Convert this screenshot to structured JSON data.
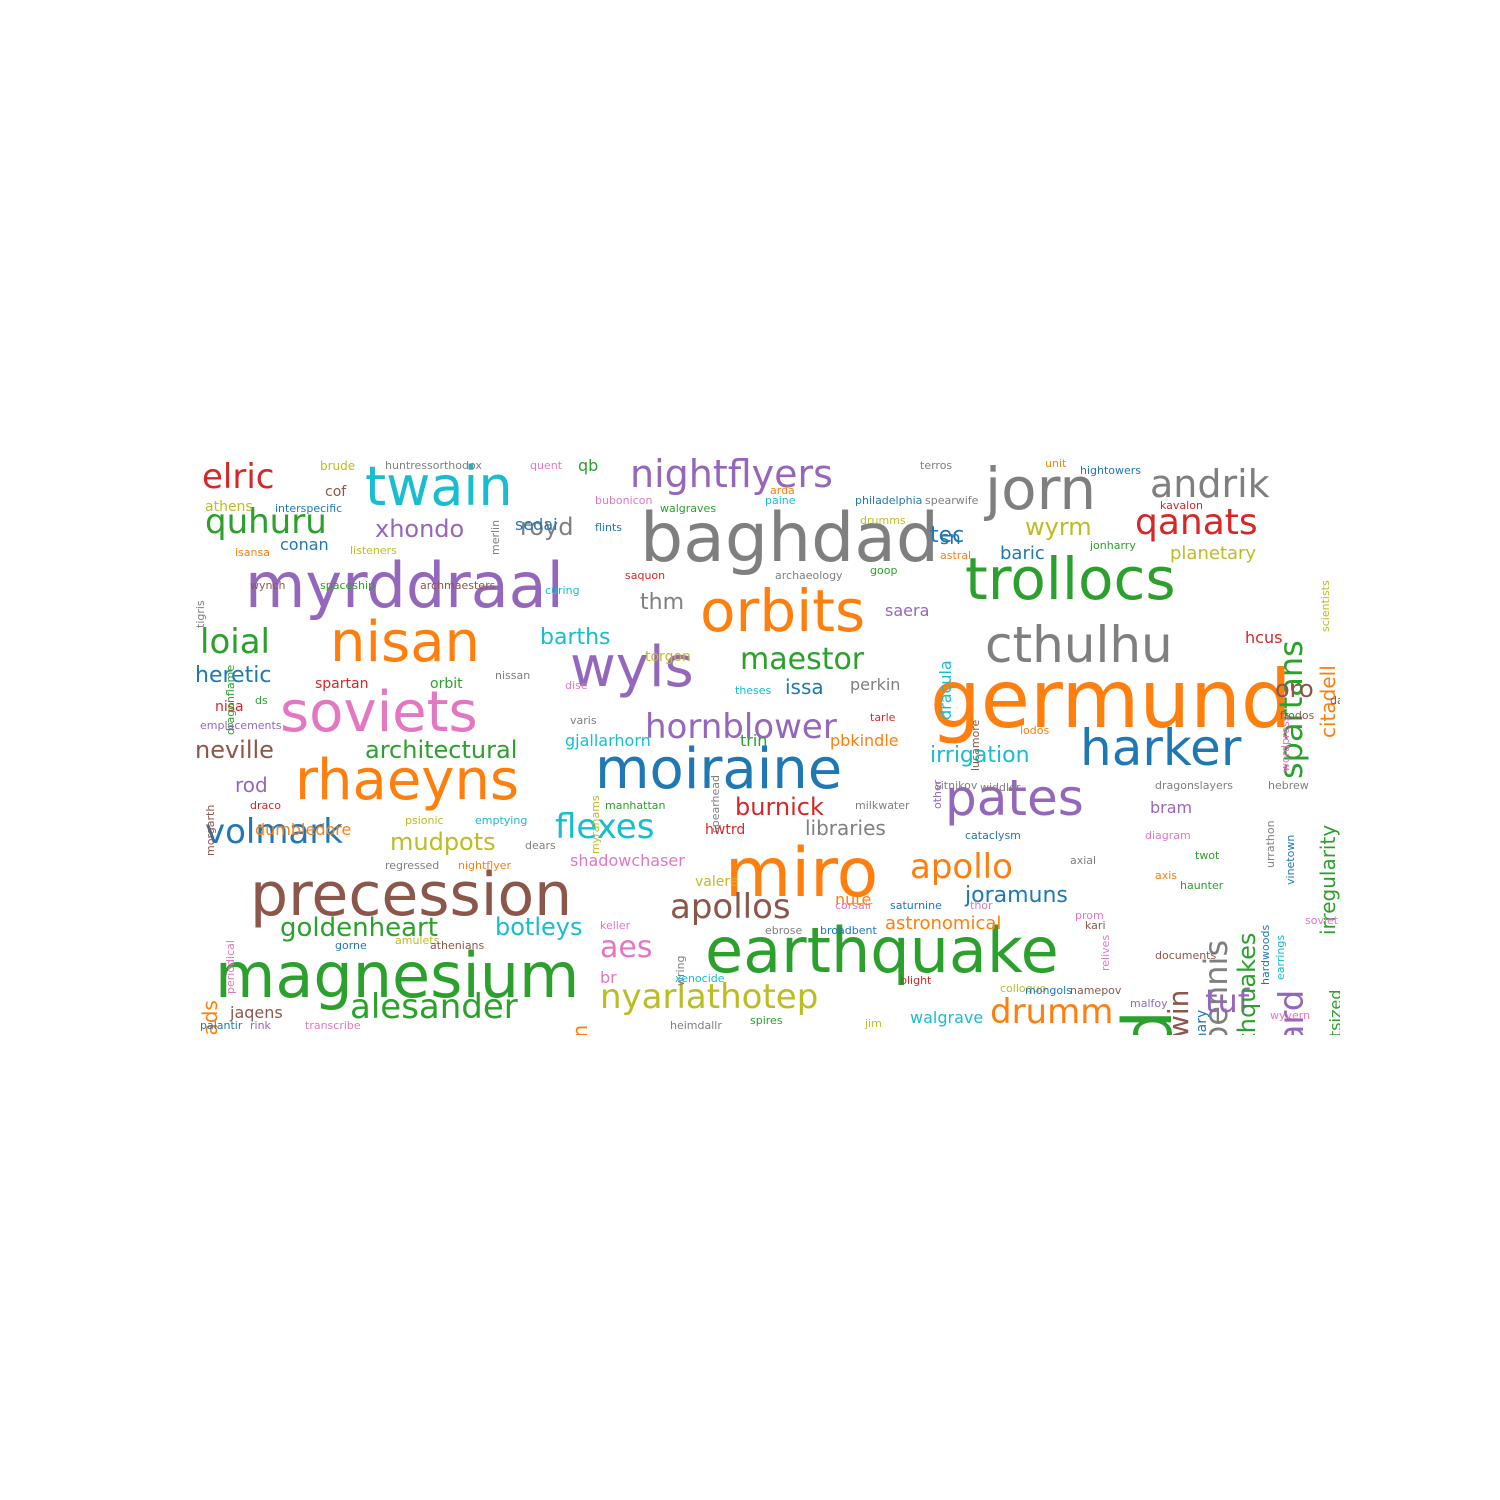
{
  "palette": {
    "blue": "#1f77b4",
    "orange": "#ff7f0e",
    "green": "#2ca02c",
    "red": "#d62728",
    "purple": "#9467bd",
    "brown": "#8c564b",
    "pink": "#e377c2",
    "gray": "#7f7f7f",
    "olive": "#bcbd22",
    "cyan": "#17becf"
  },
  "words": [
    {
      "t": "germund",
      "c": "orange"
    },
    {
      "t": "rand",
      "c": "green"
    },
    {
      "t": "baghdad",
      "c": "gray"
    },
    {
      "t": "miro",
      "c": "orange"
    },
    {
      "t": "magnesium",
      "c": "green"
    },
    {
      "t": "precession",
      "c": "brown"
    },
    {
      "t": "earthquake",
      "c": "green"
    },
    {
      "t": "myrddraal",
      "c": "purple"
    },
    {
      "t": "trollocs",
      "c": "green"
    },
    {
      "t": "orbits",
      "c": "orange"
    },
    {
      "t": "jorn",
      "c": "gray"
    },
    {
      "t": "moiraine",
      "c": "blue"
    },
    {
      "t": "soviets",
      "c": "pink"
    },
    {
      "t": "nisan",
      "c": "orange"
    },
    {
      "t": "rhaeyns",
      "c": "orange"
    },
    {
      "t": "wyls",
      "c": "purple"
    },
    {
      "t": "pates",
      "c": "purple"
    },
    {
      "t": "harker",
      "c": "blue"
    },
    {
      "t": "cthulhu",
      "c": "gray"
    },
    {
      "t": "twain",
      "c": "cyan"
    },
    {
      "t": "nightflyers",
      "c": "purple"
    },
    {
      "t": "andrik",
      "c": "gray"
    },
    {
      "t": "spartans",
      "c": "green"
    },
    {
      "t": "qanats",
      "c": "red"
    },
    {
      "t": "bennis",
      "c": "gray"
    },
    {
      "t": "midgaard",
      "c": "purple"
    },
    {
      "t": "elric",
      "c": "red"
    },
    {
      "t": "quhuru",
      "c": "green"
    },
    {
      "t": "loial",
      "c": "green"
    },
    {
      "t": "volmark",
      "c": "blue"
    },
    {
      "t": "alesander",
      "c": "green"
    },
    {
      "t": "nyarlathotep",
      "c": "olive"
    },
    {
      "t": "apollos",
      "c": "brown"
    },
    {
      "t": "apollo",
      "c": "orange"
    },
    {
      "t": "flexes",
      "c": "cyan"
    },
    {
      "t": "hornblower",
      "c": "purple"
    },
    {
      "t": "maestor",
      "c": "green"
    },
    {
      "t": "goldenheart",
      "c": "green"
    },
    {
      "t": "drumm",
      "c": "orange"
    },
    {
      "t": "tuf",
      "c": "purple"
    },
    {
      "t": "earthquakes",
      "c": "green"
    },
    {
      "t": "kerwin",
      "c": "brown"
    },
    {
      "t": "aes",
      "c": "pink"
    },
    {
      "t": "xhondo",
      "c": "purple"
    },
    {
      "t": "royd",
      "c": "gray"
    },
    {
      "t": "wyrm",
      "c": "olive"
    },
    {
      "t": "tec",
      "c": "blue"
    },
    {
      "t": "irregularity",
      "c": "green"
    },
    {
      "t": "citadell",
      "c": "orange"
    },
    {
      "t": "joramuns",
      "c": "blue"
    },
    {
      "t": "arrowheads",
      "c": "orange"
    },
    {
      "t": "architectural",
      "c": "green"
    },
    {
      "t": "mudpots",
      "c": "olive"
    },
    {
      "t": "irrigation",
      "c": "cyan"
    },
    {
      "t": "burnick",
      "c": "red"
    },
    {
      "t": "botleys",
      "c": "cyan"
    },
    {
      "t": "barths",
      "c": "cyan"
    },
    {
      "t": "heretic",
      "c": "blue"
    },
    {
      "t": "neville",
      "c": "brown"
    },
    {
      "t": "libraries",
      "c": "gray"
    },
    {
      "t": "oro",
      "c": "brown"
    },
    {
      "t": "ln",
      "c": "orange"
    },
    {
      "t": "issa",
      "c": "blue"
    },
    {
      "t": "thm",
      "c": "gray"
    },
    {
      "t": "sn",
      "c": "blue"
    },
    {
      "t": "planetary",
      "c": "olive"
    },
    {
      "t": "baric",
      "c": "blue"
    },
    {
      "t": "rod",
      "c": "purple"
    },
    {
      "t": "astronomical",
      "c": "orange"
    },
    {
      "t": "dumbledore",
      "c": "orange"
    },
    {
      "t": "outsized",
      "c": "green"
    },
    {
      "t": "dracula",
      "c": "cyan"
    },
    {
      "t": "perkin",
      "c": "gray"
    },
    {
      "t": "saera",
      "c": "purple"
    },
    {
      "t": "hcus",
      "c": "red"
    },
    {
      "t": "pbkindle",
      "c": "orange"
    },
    {
      "t": "trin",
      "c": "green"
    },
    {
      "t": "gjallarhorn",
      "c": "cyan"
    },
    {
      "t": "conan",
      "c": "blue"
    },
    {
      "t": "sedai",
      "c": "blue"
    },
    {
      "t": "qb",
      "c": "green"
    },
    {
      "t": "bram",
      "c": "purple"
    },
    {
      "t": "walgrave",
      "c": "cyan"
    },
    {
      "t": "binary",
      "c": "blue"
    },
    {
      "t": "jaqens",
      "c": "brown"
    },
    {
      "t": "br",
      "c": "pink"
    },
    {
      "t": "nute",
      "c": "orange"
    },
    {
      "t": "shadowchaser",
      "c": "pink"
    },
    {
      "t": "hwtrd",
      "c": "red"
    },
    {
      "t": "torgon",
      "c": "olive"
    },
    {
      "t": "valere",
      "c": "olive"
    },
    {
      "t": "nisa",
      "c": "red"
    },
    {
      "t": "spartan",
      "c": "red"
    },
    {
      "t": "orbit",
      "c": "green"
    },
    {
      "t": "athens",
      "c": "olive"
    },
    {
      "t": "cof",
      "c": "brown"
    },
    {
      "t": "brude",
      "c": "olive"
    },
    {
      "t": "huntressorthodox",
      "c": "gray"
    },
    {
      "t": "quent",
      "c": "pink"
    },
    {
      "t": "interspecific",
      "c": "blue"
    },
    {
      "t": "listeners",
      "c": "olive"
    },
    {
      "t": "isansa",
      "c": "orange"
    },
    {
      "t": "merlin",
      "c": "gray"
    },
    {
      "t": "bubonicon",
      "c": "pink"
    },
    {
      "t": "flints",
      "c": "blue"
    },
    {
      "t": "walgraves",
      "c": "green"
    },
    {
      "t": "arda",
      "c": "orange"
    },
    {
      "t": "paine",
      "c": "cyan"
    },
    {
      "t": "philadelphia",
      "c": "blue"
    },
    {
      "t": "drumms",
      "c": "olive"
    },
    {
      "t": "spearwife",
      "c": "gray"
    },
    {
      "t": "terros",
      "c": "gray"
    },
    {
      "t": "unit",
      "c": "orange"
    },
    {
      "t": "hightowers",
      "c": "blue"
    },
    {
      "t": "kavalon",
      "c": "red"
    },
    {
      "t": "jonharry",
      "c": "green"
    },
    {
      "t": "scientists",
      "c": "olive"
    },
    {
      "t": "astral",
      "c": "orange"
    },
    {
      "t": "goop",
      "c": "green"
    },
    {
      "t": "archaeology",
      "c": "gray"
    },
    {
      "t": "saquon",
      "c": "red"
    },
    {
      "t": "wynch",
      "c": "brown"
    },
    {
      "t": "spaceship",
      "c": "green"
    },
    {
      "t": "archmaesters",
      "c": "brown"
    },
    {
      "t": "curing",
      "c": "cyan"
    },
    {
      "t": "tigris",
      "c": "gray"
    },
    {
      "t": "dragonflame",
      "c": "green"
    },
    {
      "t": "nissan",
      "c": "gray"
    },
    {
      "t": "dise",
      "c": "pink"
    },
    {
      "t": "theses",
      "c": "cyan"
    },
    {
      "t": "lucamore",
      "c": "brown"
    },
    {
      "t": "other",
      "c": "purple"
    },
    {
      "t": "lodos",
      "c": "orange"
    },
    {
      "t": "daerons",
      "c": "brown"
    },
    {
      "t": "wordpress",
      "c": "pink"
    },
    {
      "t": "frodos",
      "c": "brown"
    },
    {
      "t": "ds",
      "c": "green"
    },
    {
      "t": "emplacements",
      "c": "purple"
    },
    {
      "t": "varis",
      "c": "gray"
    },
    {
      "t": "tarle",
      "c": "red"
    },
    {
      "t": "spearhead",
      "c": "gray"
    },
    {
      "t": "myrahams",
      "c": "olive"
    },
    {
      "t": "sitnikov",
      "c": "gray"
    },
    {
      "t": "widdler",
      "c": "gray"
    },
    {
      "t": "dragonslayers",
      "c": "gray"
    },
    {
      "t": "hebrew",
      "c": "gray"
    },
    {
      "t": "morgarth",
      "c": "brown"
    },
    {
      "t": "draco",
      "c": "red"
    },
    {
      "t": "psionic",
      "c": "olive"
    },
    {
      "t": "emptying",
      "c": "cyan"
    },
    {
      "t": "manhattan",
      "c": "green"
    },
    {
      "t": "milkwater",
      "c": "gray"
    },
    {
      "t": "dears",
      "c": "gray"
    },
    {
      "t": "cataclysm",
      "c": "blue"
    },
    {
      "t": "diagram",
      "c": "pink"
    },
    {
      "t": "urrathon",
      "c": "gray"
    },
    {
      "t": "periodical",
      "c": "pink"
    },
    {
      "t": "regressed",
      "c": "gray"
    },
    {
      "t": "nightflyer",
      "c": "orange"
    },
    {
      "t": "axial",
      "c": "gray"
    },
    {
      "t": "twot",
      "c": "green"
    },
    {
      "t": "axis",
      "c": "orange"
    },
    {
      "t": "haunter",
      "c": "green"
    },
    {
      "t": "vinetown",
      "c": "blue"
    },
    {
      "t": "earrings",
      "c": "cyan"
    },
    {
      "t": "hardwoods",
      "c": "blue"
    },
    {
      "t": "corsair",
      "c": "pink"
    },
    {
      "t": "saturnine",
      "c": "blue"
    },
    {
      "t": "thor",
      "c": "pink"
    },
    {
      "t": "prom",
      "c": "pink"
    },
    {
      "t": "kari",
      "c": "brown"
    },
    {
      "t": "relives",
      "c": "pink"
    },
    {
      "t": "soviet",
      "c": "pink"
    },
    {
      "t": "documents",
      "c": "brown"
    },
    {
      "t": "gorne",
      "c": "blue"
    },
    {
      "t": "amulets",
      "c": "olive"
    },
    {
      "t": "athenians",
      "c": "brown"
    },
    {
      "t": "keller",
      "c": "pink"
    },
    {
      "t": "wring",
      "c": "gray"
    },
    {
      "t": "xenocide",
      "c": "cyan"
    },
    {
      "t": "ebrose",
      "c": "gray"
    },
    {
      "t": "broadbent",
      "c": "blue"
    },
    {
      "t": "blight",
      "c": "red"
    },
    {
      "t": "colloquo",
      "c": "olive"
    },
    {
      "t": "mongols",
      "c": "blue"
    },
    {
      "t": "namepov",
      "c": "brown"
    },
    {
      "t": "malfoy",
      "c": "purple"
    },
    {
      "t": "wyvern",
      "c": "pink"
    },
    {
      "t": "palantir",
      "c": "blue"
    },
    {
      "t": "rink",
      "c": "purple"
    },
    {
      "t": "transcribe",
      "c": "pink"
    },
    {
      "t": "heimdallr",
      "c": "gray"
    },
    {
      "t": "spires",
      "c": "green"
    },
    {
      "t": "jim",
      "c": "olive"
    }
  ]
}
